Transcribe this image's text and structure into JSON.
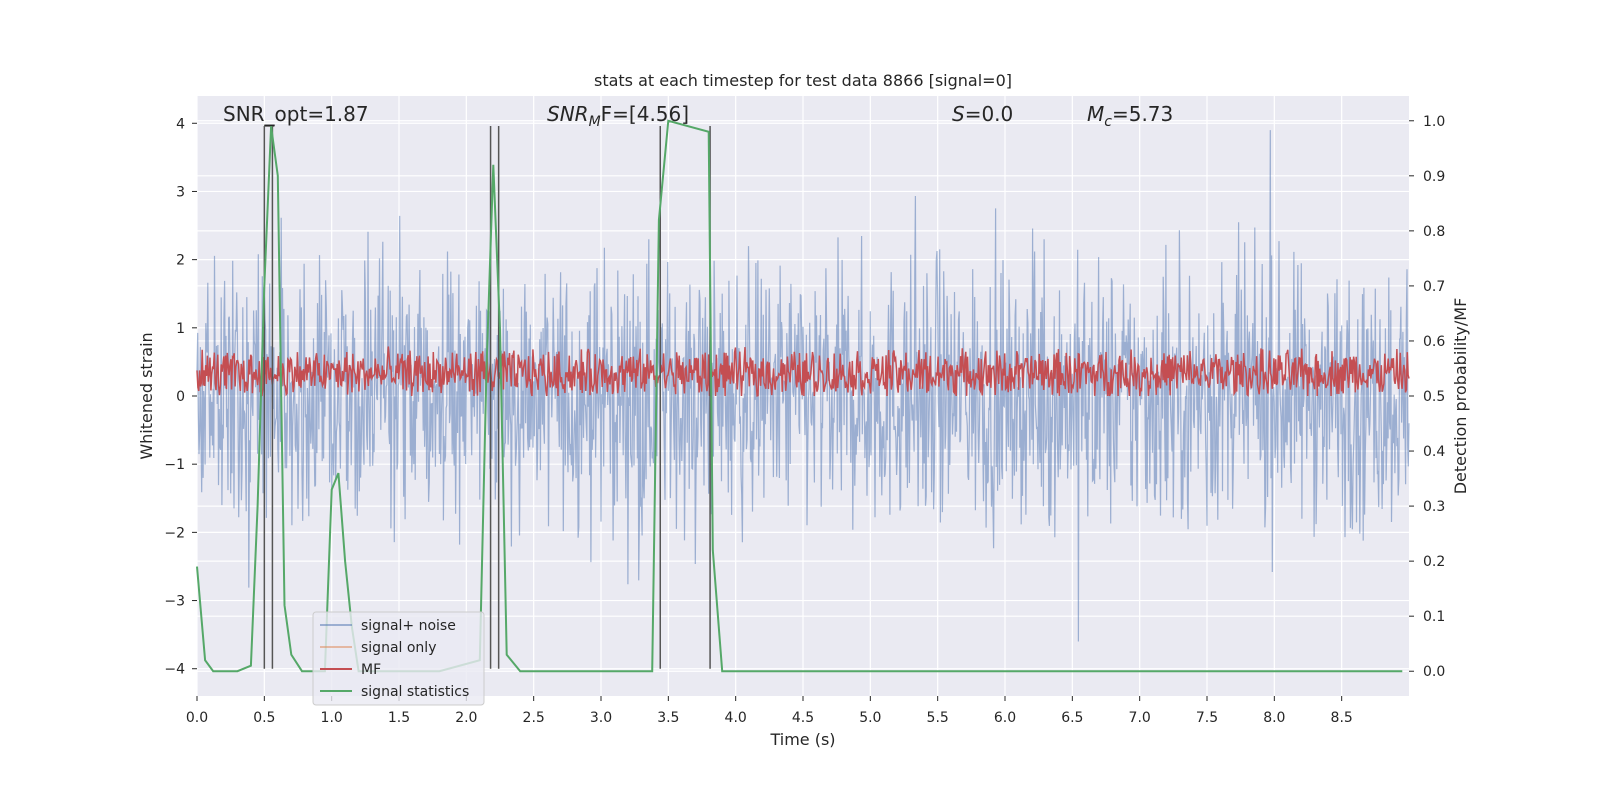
{
  "chart_data": {
    "type": "line",
    "title": "stats at each timestep for test data 8866 [signal=0]",
    "xlabel": "Time (s)",
    "ylabel": "Whitened strain",
    "y2label": "Detection probability/MF",
    "xlim": [
      0,
      9.0
    ],
    "ylim": [
      -4.4,
      4.4
    ],
    "y2lim": [
      -0.045,
      1.045
    ],
    "xticks": [
      "0.0",
      "0.5",
      "1.0",
      "1.5",
      "2.0",
      "2.5",
      "3.0",
      "3.5",
      "4.0",
      "4.5",
      "5.0",
      "5.5",
      "6.0",
      "6.5",
      "7.0",
      "7.5",
      "8.0",
      "8.5"
    ],
    "yticks": [
      "4",
      "3",
      "2",
      "1",
      "0",
      "−1",
      "−2",
      "−3",
      "−4"
    ],
    "y2ticks": [
      "1.0",
      "0.9",
      "0.8",
      "0.7",
      "0.6",
      "0.5",
      "0.4",
      "0.3",
      "0.2",
      "0.1",
      "0.0"
    ],
    "grid": true,
    "legend_position": "lower left",
    "annotations": {
      "snr_opt": "SNR_opt=1.87",
      "snr_mf_prefix": "SNR",
      "snr_mf_sub": "M",
      "snr_mf_suffix": "F=[4.56]",
      "s_prefix": "S",
      "s_suffix": "=0.0",
      "mc_prefix": "M",
      "mc_sub": "c",
      "mc_suffix": "=5.73"
    },
    "series": [
      {
        "name": "signal+ noise",
        "color": "#4c72b0",
        "axis": "left",
        "description_values": "noise band approx -2.4..2.7 with spikes to 3.9 / -3.6"
      },
      {
        "name": "signal only",
        "color": "#dd8452",
        "axis": "left",
        "values": []
      },
      {
        "name": "MF",
        "color": "#c44e52",
        "axis": "left",
        "band": [
          0.0,
          0.75
        ]
      },
      {
        "name": "signal statistics",
        "color": "#55a868",
        "axis": "right",
        "x": [
          0.0,
          0.06,
          0.12,
          0.2,
          0.3,
          0.4,
          0.45,
          0.5,
          0.55,
          0.6,
          0.65,
          0.7,
          0.78,
          0.85,
          0.95,
          1.0,
          1.05,
          1.1,
          1.15,
          1.2,
          1.3,
          1.5,
          1.8,
          2.1,
          2.15,
          2.2,
          2.25,
          2.3,
          2.4,
          2.6,
          3.0,
          3.38,
          3.43,
          3.5,
          3.8,
          3.83,
          3.9,
          4.5,
          6.0,
          8.0,
          8.95
        ],
        "y": [
          0.19,
          0.02,
          0.0,
          0.0,
          0.0,
          0.01,
          0.3,
          0.7,
          0.99,
          0.9,
          0.12,
          0.03,
          0.0,
          0.0,
          0.0,
          0.33,
          0.36,
          0.2,
          0.08,
          0.0,
          0.0,
          0.0,
          0.0,
          0.02,
          0.55,
          0.92,
          0.62,
          0.03,
          0.0,
          0.0,
          0.0,
          0.0,
          0.82,
          1.0,
          0.98,
          0.22,
          0.0,
          0.0,
          0.0,
          0.0,
          0.0
        ]
      }
    ],
    "vertical_lines": [
      0.5,
      0.56,
      2.18,
      2.24,
      3.44,
      3.81
    ],
    "vertical_lines_color": "#555555"
  }
}
